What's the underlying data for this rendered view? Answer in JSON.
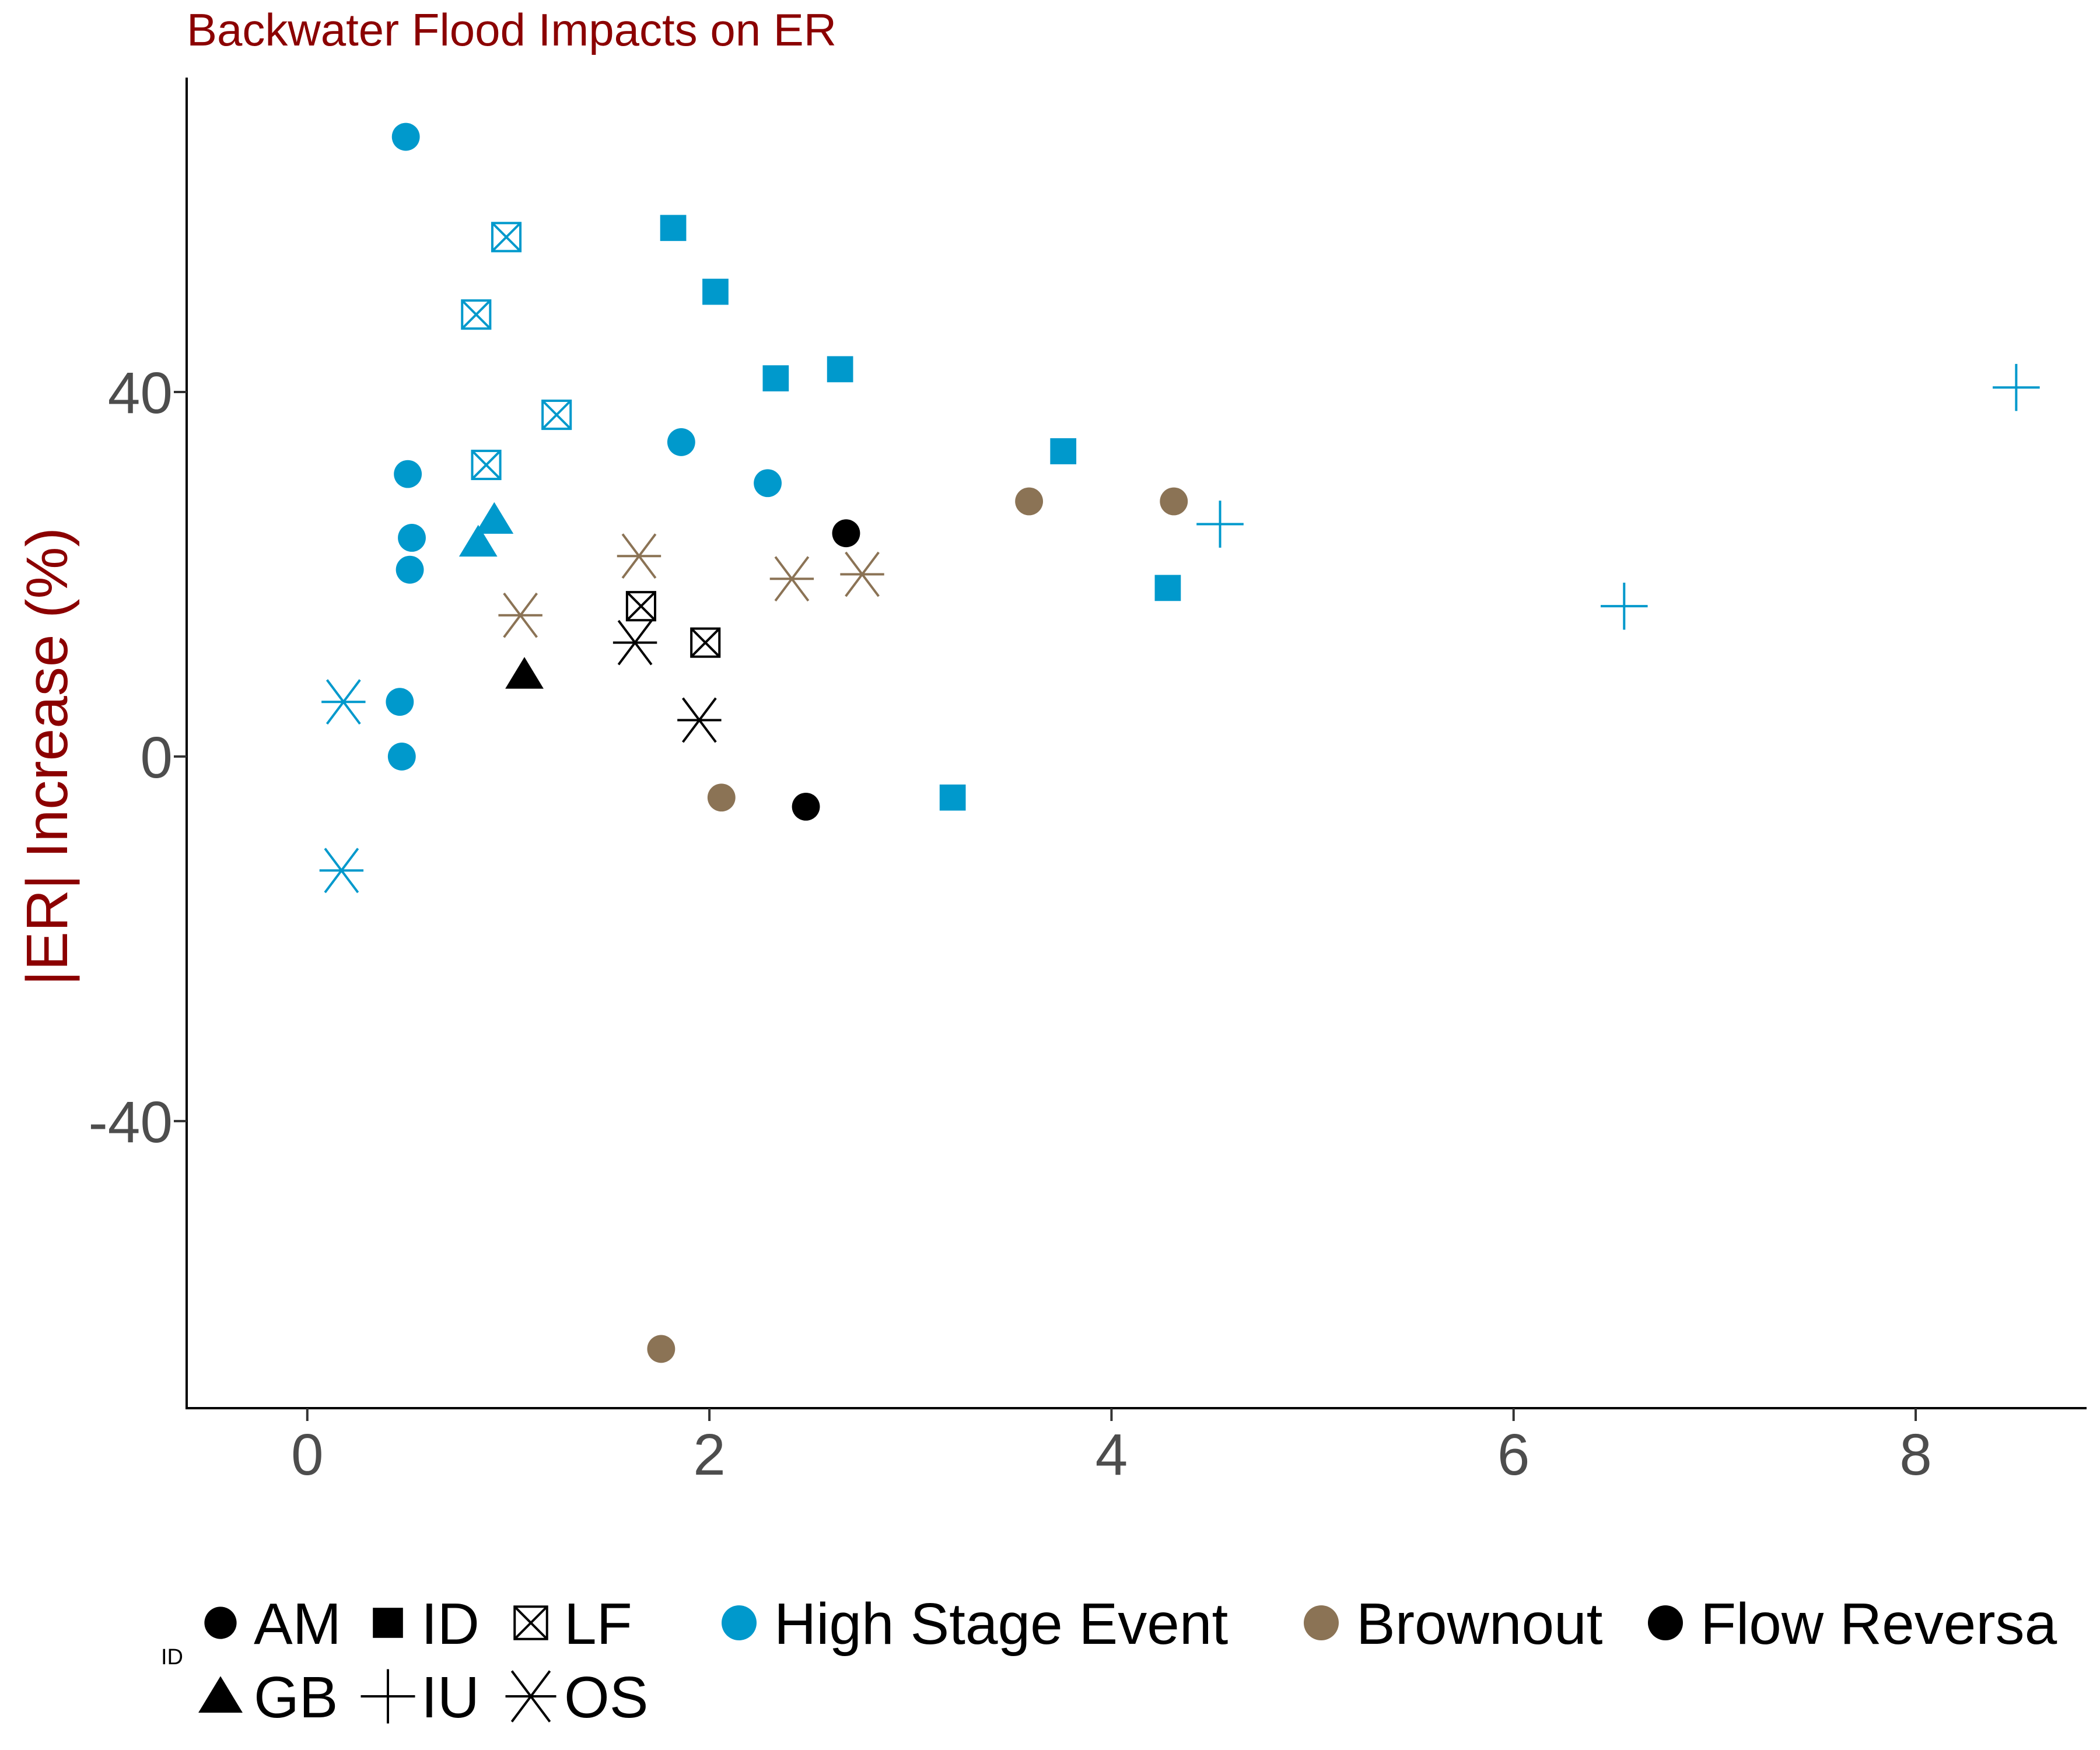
{
  "chart_data": {
    "type": "scatter",
    "title": "Backwater Flood Impacts on ER",
    "xlabel": "",
    "ylabel": "|ER| Increase (%)",
    "xlim": [
      -0.6,
      8.85
    ],
    "ylim": [
      -71.5,
      74.5
    ],
    "x_ticks": [
      "0",
      "2",
      "4",
      "6",
      "8"
    ],
    "x_tick_values": [
      0,
      2,
      4,
      6,
      8
    ],
    "y_ticks": [
      "40",
      "0",
      "-40"
    ],
    "y_tick_values": [
      40,
      0,
      -40
    ],
    "grid": false,
    "title_color": "#8B0000",
    "ylabel_color": "#8B0000",
    "legend_shape_title": "ID",
    "legend_shapes": [
      {
        "id": "AM",
        "shape": "circle-icon"
      },
      {
        "id": "ID",
        "shape": "square-icon"
      },
      {
        "id": "LF",
        "shape": "boxed-x-icon"
      },
      {
        "id": "GB",
        "shape": "triangle-icon"
      },
      {
        "id": "IU",
        "shape": "plus-icon"
      },
      {
        "id": "OS",
        "shape": "asterisk-icon"
      }
    ],
    "legend_colors": [
      {
        "name": "High Stage Event",
        "color": "#0099CC"
      },
      {
        "name": "Brownout",
        "color": "#8B7355"
      },
      {
        "name": "Flow Reversa",
        "color": "#000000"
      }
    ],
    "series": [
      {
        "name": "High Stage Event",
        "color": "#0099CC",
        "points": [
          {
            "id": "AM",
            "x": 0.49,
            "y": 68
          },
          {
            "id": "AM",
            "x": 0.5,
            "y": 31
          },
          {
            "id": "AM",
            "x": 0.52,
            "y": 24
          },
          {
            "id": "AM",
            "x": 0.51,
            "y": 20.5
          },
          {
            "id": "AM",
            "x": 0.46,
            "y": 6
          },
          {
            "id": "AM",
            "x": 0.47,
            "y": 0
          },
          {
            "id": "AM",
            "x": 1.86,
            "y": 34.5
          },
          {
            "id": "AM",
            "x": 2.29,
            "y": 30
          },
          {
            "id": "ID",
            "x": 1.82,
            "y": 58
          },
          {
            "id": "ID",
            "x": 2.03,
            "y": 51
          },
          {
            "id": "ID",
            "x": 2.33,
            "y": 41.5
          },
          {
            "id": "ID",
            "x": 2.65,
            "y": 42.5
          },
          {
            "id": "ID",
            "x": 3.76,
            "y": 33.5
          },
          {
            "id": "ID",
            "x": 4.28,
            "y": 18.5
          },
          {
            "id": "ID",
            "x": 3.21,
            "y": -4.5
          },
          {
            "id": "LF",
            "x": 0.99,
            "y": 57
          },
          {
            "id": "LF",
            "x": 0.84,
            "y": 48.5
          },
          {
            "id": "LF",
            "x": 1.24,
            "y": 37.5
          },
          {
            "id": "LF",
            "x": 0.89,
            "y": 32
          },
          {
            "id": "GB",
            "x": 0.93,
            "y": 26
          },
          {
            "id": "GB",
            "x": 0.85,
            "y": 23.5
          },
          {
            "id": "IU",
            "x": 8.5,
            "y": 40.5
          },
          {
            "id": "IU",
            "x": 4.54,
            "y": 25.5
          },
          {
            "id": "IU",
            "x": 6.55,
            "y": 16.5
          },
          {
            "id": "OS",
            "x": 0.18,
            "y": 6
          },
          {
            "id": "OS",
            "x": 0.17,
            "y": -12.5
          }
        ]
      },
      {
        "name": "Brownout",
        "color": "#8B7355",
        "points": [
          {
            "id": "AM",
            "x": 3.59,
            "y": 28
          },
          {
            "id": "AM",
            "x": 4.31,
            "y": 28
          },
          {
            "id": "AM",
            "x": 2.06,
            "y": -4.5
          },
          {
            "id": "AM",
            "x": 1.76,
            "y": -65
          },
          {
            "id": "OS",
            "x": 1.65,
            "y": 22
          },
          {
            "id": "OS",
            "x": 1.06,
            "y": 15.5
          },
          {
            "id": "OS",
            "x": 2.41,
            "y": 19.5
          },
          {
            "id": "OS",
            "x": 2.76,
            "y": 20
          }
        ]
      },
      {
        "name": "Flow Reversa",
        "color": "#000000",
        "points": [
          {
            "id": "AM",
            "x": 2.68,
            "y": 24.5
          },
          {
            "id": "AM",
            "x": 2.48,
            "y": -5.5
          },
          {
            "id": "GB",
            "x": 1.08,
            "y": 9
          },
          {
            "id": "LF",
            "x": 1.66,
            "y": 16.5
          },
          {
            "id": "LF",
            "x": 1.98,
            "y": 12.5
          },
          {
            "id": "OS",
            "x": 1.63,
            "y": 12.5
          },
          {
            "id": "OS",
            "x": 1.95,
            "y": 4
          }
        ]
      }
    ]
  }
}
